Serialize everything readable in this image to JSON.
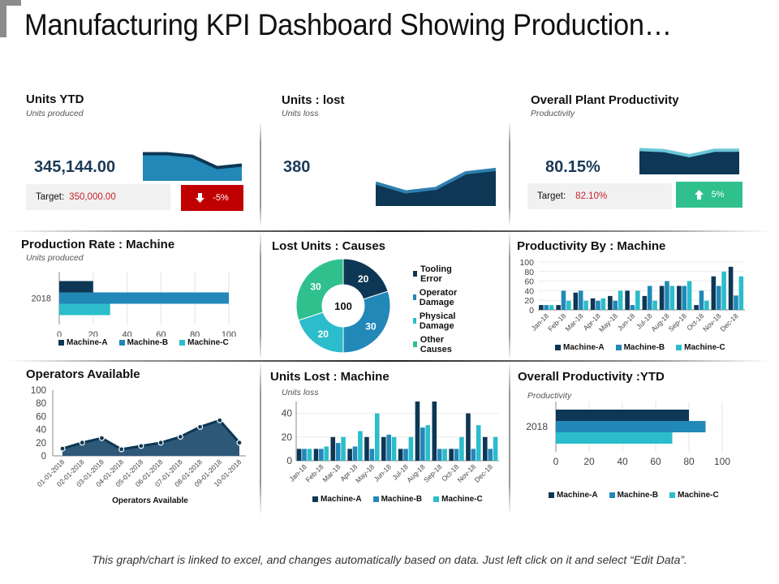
{
  "page": {
    "title": "Manufacturing KPI Dashboard Showing Production…",
    "footer": "This graph/chart is linked to excel, and changes automatically based on data. Just left click on it and select “Edit Data”."
  },
  "colors": {
    "machine_a": "#0d3754",
    "machine_b": "#2288b8",
    "machine_c": "#2bbdcb",
    "other": "#2fc08e",
    "down": "#c00000",
    "up": "#2fc08e",
    "value": "#1b3a56",
    "target_value": "#c8202a"
  },
  "kpis": {
    "units_ytd": {
      "title": "Units YTD",
      "subtitle": "Units produced",
      "value": "345,144.00",
      "target_label": "Target:",
      "target_value": "350,000.00",
      "change": "-5%",
      "change_icon": "arrow-down-icon",
      "sparkline": [
        95,
        95,
        85,
        40,
        50
      ]
    },
    "units_lost": {
      "title": "Units : lost",
      "subtitle": "Units loss",
      "value": "380",
      "sparkline": [
        58,
        32,
        42,
        88,
        98
      ]
    },
    "plant_productivity": {
      "title": "Overall Plant Productivity",
      "subtitle": "Productivity",
      "value": "80.15%",
      "target_label": "Target:",
      "target_value": "82.10%",
      "change": "5%",
      "change_icon": "arrow-up-icon",
      "sparkline": [
        95,
        90,
        68,
        92,
        92
      ]
    }
  },
  "legend_machines": [
    "Machine-A",
    "Machine-B",
    "Machine-C"
  ],
  "chart_data": [
    {
      "id": "production_rate",
      "type": "bar",
      "orientation": "horizontal",
      "title": "Production Rate : Machine",
      "subtitle": "Units produced",
      "categories": [
        "2018"
      ],
      "series": [
        {
          "name": "Machine-A",
          "values": [
            20
          ]
        },
        {
          "name": "Machine-B",
          "values": [
            100
          ]
        },
        {
          "name": "Machine-C",
          "values": [
            30
          ]
        }
      ],
      "xlim": [
        0,
        100
      ],
      "xticks": [
        "0",
        "20",
        "40",
        "60",
        "80",
        "100"
      ],
      "legend": "bottom"
    },
    {
      "id": "lost_units_causes",
      "type": "pie",
      "donut": true,
      "title": "Lost Units : Causes",
      "center_label": "100",
      "slices": [
        {
          "name": "Tooling Error",
          "value": 20
        },
        {
          "name": "Operator Damage",
          "value": 30
        },
        {
          "name": "Physical Damage",
          "value": 20
        },
        {
          "name": "Other Causes",
          "value": 30
        }
      ],
      "legend": "right"
    },
    {
      "id": "productivity_by_machine",
      "type": "bar",
      "title": "Productivity By : Machine",
      "categories": [
        "Jan-18",
        "Feb-18",
        "Mar-18",
        "Apr-18",
        "May-18",
        "Jun-18",
        "Jul-18",
        "Aug-18",
        "Sep-18",
        "Oct-18",
        "Nov-18",
        "Dec-18"
      ],
      "series": [
        {
          "name": "Machine-A",
          "values": [
            10,
            10,
            36,
            24,
            29,
            40,
            29,
            50,
            50,
            10,
            70,
            90
          ]
        },
        {
          "name": "Machine-B",
          "values": [
            10,
            40,
            40,
            19,
            19,
            10,
            50,
            60,
            50,
            40,
            50,
            30
          ]
        },
        {
          "name": "Machine-C",
          "values": [
            10,
            19,
            19,
            24,
            40,
            40,
            19,
            50,
            60,
            19,
            80,
            70
          ]
        }
      ],
      "ylim": [
        0,
        100
      ],
      "yticks": [
        "0",
        "20",
        "40",
        "60",
        "80",
        "100"
      ],
      "grid": true,
      "legend": "bottom"
    },
    {
      "id": "operators_available",
      "type": "area",
      "title": "Operators Available",
      "xlabel": "Operators Available",
      "x": [
        "01-01-2018",
        "02-01-2018",
        "03-01-2018",
        "04-01-2018",
        "05-01-2018",
        "06-01-2018",
        "07-01-2018",
        "08-01-2018",
        "09-01-2018",
        "10-01-2018"
      ],
      "values": [
        11,
        20,
        27,
        10,
        15,
        20,
        29,
        44,
        54,
        20
      ],
      "ylim": [
        0,
        100
      ],
      "yticks": [
        "0",
        "20",
        "40",
        "60",
        "80",
        "100"
      ]
    },
    {
      "id": "units_lost_machine",
      "type": "bar",
      "title": "Units Lost : Machine",
      "subtitle": "Units loss",
      "categories": [
        "Jan-18",
        "Feb-18",
        "Mar-18",
        "Apr-18",
        "May-18",
        "Jun-18",
        "Jul-18",
        "Aug-18",
        "Sep-18",
        "Oct-18",
        "Nov-18",
        "Dec-18"
      ],
      "series": [
        {
          "name": "Machine-A",
          "values": [
            10,
            10,
            20,
            10,
            20,
            20,
            10,
            50,
            50,
            10,
            40,
            20
          ]
        },
        {
          "name": "Machine-B",
          "values": [
            10,
            10,
            15,
            12,
            10,
            22,
            10,
            28,
            10,
            10,
            10,
            10
          ]
        },
        {
          "name": "Machine-C",
          "values": [
            10,
            12,
            20,
            25,
            40,
            20,
            20,
            30,
            10,
            20,
            30,
            20
          ]
        }
      ],
      "ylim": [
        0,
        50
      ],
      "yticks": [
        "0",
        "20",
        "40"
      ],
      "grid": true,
      "legend": "bottom"
    },
    {
      "id": "overall_productivity_ytd",
      "type": "bar",
      "orientation": "horizontal",
      "title": "Overall Productivity :YTD",
      "subtitle": "Productivity",
      "categories": [
        "2018"
      ],
      "series": [
        {
          "name": "Machine-A",
          "values": [
            80
          ]
        },
        {
          "name": "Machine-B",
          "values": [
            90
          ]
        },
        {
          "name": "Machine-C",
          "values": [
            70
          ]
        }
      ],
      "xlim": [
        0,
        100
      ],
      "xticks": [
        "0",
        "20",
        "40",
        "60",
        "80",
        "100"
      ],
      "legend": "bottom"
    }
  ]
}
